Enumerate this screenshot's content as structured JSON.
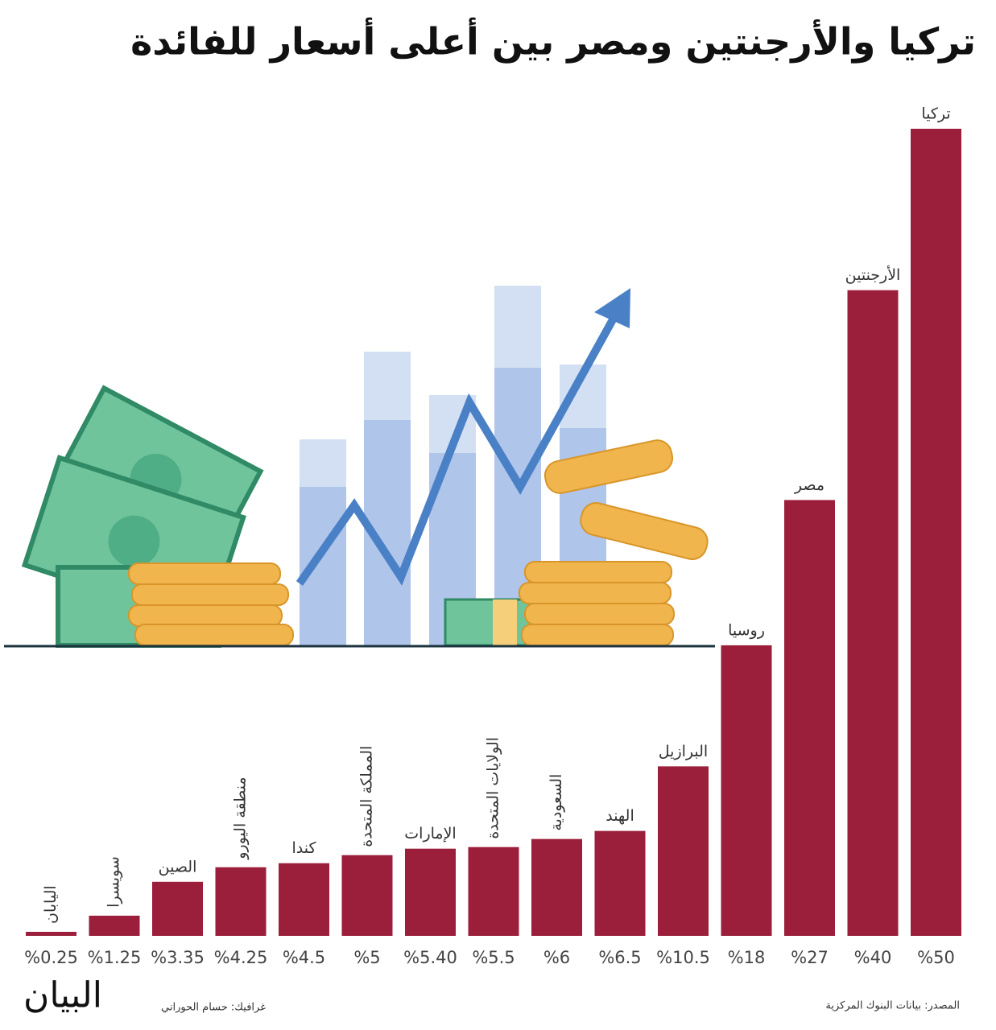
{
  "chart_data": {
    "type": "bar",
    "title": "تركيا والأرجنتين ومصر بين أعلى أسعار للفائدة",
    "categories": [
      "اليابان",
      "سويسرا",
      "الصين",
      "منطقة اليورو",
      "كندا",
      "المملكة المتحدة",
      "الإمارات",
      "الولايات المتحدة",
      "السعودية",
      "الهند",
      "البرازيل",
      "روسيا",
      "مصر",
      "الأرجنتين",
      "تركيا"
    ],
    "values": [
      0.25,
      1.25,
      3.35,
      4.25,
      4.5,
      5,
      5.4,
      5.5,
      6,
      6.5,
      10.5,
      18,
      27,
      40,
      50
    ],
    "value_labels": [
      "%0.25",
      "%1.25",
      "%3.35",
      "%4.25",
      "%4.5",
      "%5",
      "%5.40",
      "%5.5",
      "%6",
      "%6.5",
      "%10.5",
      "%18",
      "%27",
      "%40",
      "%50"
    ],
    "color": "#9b1e3a",
    "ylim": [
      0,
      50
    ],
    "source": "المصدر: بيانات البنوك المركزية",
    "credit": "غرافيك: حسام الحوراني",
    "logo": "البيان"
  }
}
